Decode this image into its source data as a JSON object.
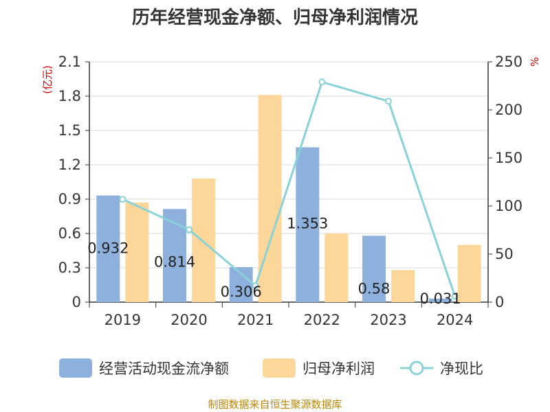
{
  "title": "历年经营现金净额、归母净利润情况",
  "source": "制图数据来自恒生聚源数据库",
  "chart_data": {
    "type": "bar",
    "categories": [
      "2019",
      "2020",
      "2021",
      "2022",
      "2023",
      "2024"
    ],
    "series": [
      {
        "name": "经营活动现金流净额",
        "type": "bar",
        "axis": "left",
        "color": "#8eb0dc",
        "values": [
          0.932,
          0.814,
          0.306,
          1.353,
          0.58,
          0.031
        ],
        "labels": [
          "0.932",
          "0.814",
          "0.306",
          "1.353",
          "0.58",
          "0.031"
        ]
      },
      {
        "name": "归母净利润",
        "type": "bar",
        "axis": "left",
        "color": "#fdd699",
        "values": [
          0.87,
          1.08,
          1.81,
          0.6,
          0.28,
          0.5
        ]
      },
      {
        "name": "净现比",
        "type": "line",
        "axis": "right",
        "color": "#88d2d8",
        "values": [
          107,
          75.4,
          17,
          229,
          209,
          6.2
        ]
      }
    ],
    "ylabel_left": "(亿元)",
    "ylabel_right": "%",
    "ylim_left": [
      0,
      2.1
    ],
    "yticks_left": [
      "0",
      "0.3",
      "0.6",
      "0.9",
      "1.2",
      "1.5",
      "1.8",
      "2.1"
    ],
    "ylim_right": [
      0,
      250
    ],
    "yticks_right": [
      "0",
      "50",
      "100",
      "150",
      "200",
      "250"
    ],
    "grid": true,
    "legend_position": "bottom"
  }
}
